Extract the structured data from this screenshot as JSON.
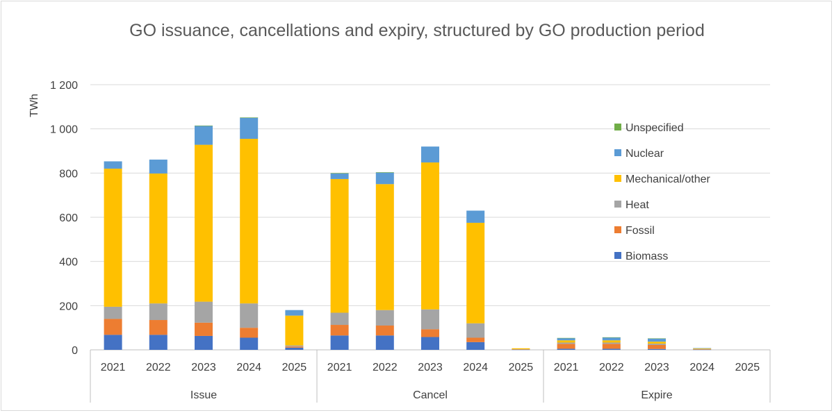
{
  "chart_data": {
    "type": "bar",
    "stacked": true,
    "title": "GO issuance, cancellations and expiry, structured by GO production period",
    "ylabel": "TWh",
    "xlabel": "",
    "ylim": [
      0,
      1200
    ],
    "yticks": [
      0,
      200,
      400,
      600,
      800,
      1000,
      1200
    ],
    "ytick_labels": [
      "0",
      "200",
      "400",
      "600",
      "800",
      "1 000",
      "1 200"
    ],
    "grid": true,
    "legend_position": "right",
    "groups": [
      {
        "name": "Issue",
        "categories": [
          "2021",
          "2022",
          "2023",
          "2024",
          "2025"
        ]
      },
      {
        "name": "Cancel",
        "categories": [
          "2021",
          "2022",
          "2023",
          "2024",
          "2025"
        ]
      },
      {
        "name": "Expire",
        "categories": [
          "2021",
          "2022",
          "2023",
          "2024",
          "2025"
        ]
      }
    ],
    "series": [
      {
        "name": "Biomass",
        "color": "#4472c4",
        "values": [
          68,
          68,
          63,
          55,
          10,
          65,
          65,
          58,
          35,
          1,
          5,
          5,
          4,
          1,
          0
        ]
      },
      {
        "name": "Fossil",
        "color": "#ed7d31",
        "values": [
          72,
          67,
          60,
          45,
          5,
          48,
          45,
          35,
          20,
          1,
          22,
          22,
          18,
          2,
          0
        ]
      },
      {
        "name": "Heat",
        "color": "#a5a5a5",
        "values": [
          55,
          75,
          95,
          110,
          5,
          55,
          70,
          90,
          65,
          1,
          6,
          6,
          6,
          1,
          0
        ]
      },
      {
        "name": "Mechanical/other",
        "color": "#ffc000",
        "values": [
          625,
          588,
          710,
          745,
          135,
          605,
          570,
          665,
          455,
          4,
          10,
          10,
          9,
          3,
          0
        ]
      },
      {
        "name": "Nuclear",
        "color": "#5b9bd5",
        "values": [
          33,
          63,
          85,
          95,
          25,
          25,
          52,
          72,
          55,
          0,
          10,
          13,
          14,
          1,
          0
        ]
      },
      {
        "name": "Unspecified",
        "color": "#70ad47",
        "values": [
          0,
          0,
          2,
          2,
          0,
          2,
          2,
          0,
          0,
          0,
          1,
          1,
          1,
          0,
          0
        ]
      }
    ],
    "legend_order": [
      "Unspecified",
      "Nuclear",
      "Mechanical/other",
      "Heat",
      "Fossil",
      "Biomass"
    ]
  }
}
